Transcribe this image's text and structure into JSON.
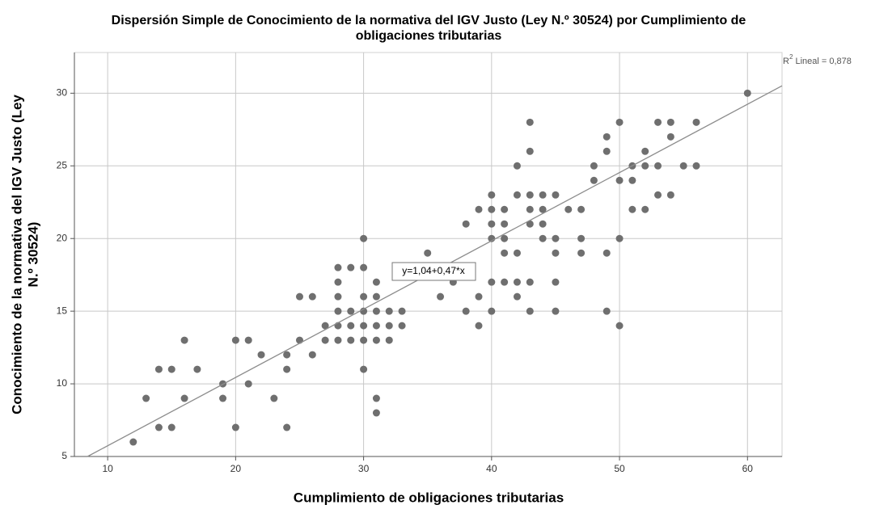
{
  "chart_data": {
    "type": "scatter",
    "title_lines": [
      "Dispersión Simple de Conocimiento de la normativa del IGV Justo (Ley N.º 30524) por Cumplimiento de",
      "obligaciones tributarias"
    ],
    "x_label": "Cumplimiento de obligaciones tributarias",
    "y_label_lines": [
      "Conocimiento de la normativa del IGV Justo (Ley",
      "N.º 30524)"
    ],
    "xlim": [
      7.4,
      62.7
    ],
    "ylim": [
      5,
      32.8
    ],
    "xticks": [
      10,
      20,
      30,
      40,
      50,
      60
    ],
    "yticks": [
      5,
      10,
      15,
      20,
      25,
      30
    ],
    "grid": true,
    "color": "#6f6f6f",
    "x": [
      12,
      13,
      14,
      14,
      15,
      15,
      16,
      16,
      17,
      19,
      19,
      20,
      20,
      21,
      21,
      22,
      23,
      24,
      24,
      24,
      25,
      25,
      26,
      26,
      27,
      27,
      28,
      28,
      28,
      28,
      28,
      28,
      29,
      29,
      29,
      29,
      30,
      30,
      30,
      30,
      30,
      30,
      30,
      31,
      31,
      31,
      31,
      31,
      31,
      31,
      32,
      32,
      32,
      33,
      33,
      35,
      36,
      37,
      38,
      38,
      39,
      39,
      39,
      40,
      40,
      40,
      40,
      40,
      40,
      41,
      41,
      41,
      41,
      41,
      42,
      42,
      42,
      42,
      42,
      43,
      43,
      43,
      43,
      43,
      43,
      43,
      44,
      44,
      44,
      44,
      45,
      45,
      45,
      45,
      45,
      46,
      47,
      47,
      47,
      48,
      48,
      49,
      49,
      49,
      49,
      50,
      50,
      50,
      50,
      51,
      51,
      51,
      52,
      52,
      52,
      53,
      53,
      53,
      54,
      54,
      54,
      55,
      56,
      56,
      60
    ],
    "y": [
      6,
      9,
      11,
      7,
      11,
      7,
      13,
      9,
      11,
      10,
      9,
      13,
      7,
      13,
      10,
      12,
      9,
      12,
      11,
      7,
      16,
      13,
      16,
      12,
      14,
      13,
      18,
      17,
      16,
      15,
      14,
      13,
      18,
      15,
      14,
      13,
      20,
      18,
      16,
      15,
      14,
      13,
      11,
      17,
      16,
      15,
      14,
      13,
      9,
      8,
      15,
      14,
      13,
      15,
      14,
      19,
      16,
      17,
      21,
      15,
      22,
      16,
      14,
      23,
      22,
      21,
      20,
      17,
      15,
      22,
      21,
      20,
      19,
      17,
      25,
      23,
      19,
      17,
      16,
      28,
      26,
      23,
      22,
      21,
      17,
      15,
      23,
      22,
      21,
      20,
      23,
      20,
      19,
      17,
      15,
      22,
      22,
      20,
      19,
      25,
      24,
      27,
      26,
      19,
      15,
      28,
      24,
      20,
      14,
      25,
      24,
      22,
      26,
      25,
      22,
      28,
      25,
      23,
      28,
      27,
      23,
      25,
      28,
      25,
      30
    ],
    "fit": {
      "intercept": 1.04,
      "slope": 0.47,
      "color": "#8c8c8c",
      "label": "y=1,04+0,47*x",
      "r2_label": [
        "R",
        "2",
        " Lineal = 0,878"
      ]
    }
  }
}
